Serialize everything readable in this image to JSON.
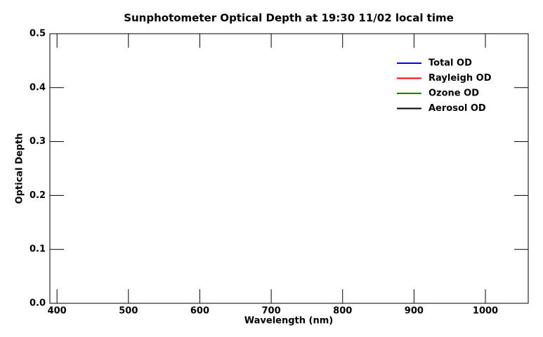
{
  "chart_data": {
    "type": "line",
    "title": "Sunphotometer Optical Depth at 19:30  11/02 local time",
    "xlabel": "Wavelength (nm)",
    "ylabel": "Optical Depth",
    "x": [],
    "series": [
      {
        "name": "Total OD",
        "color": "#0000ff",
        "values": []
      },
      {
        "name": "Rayleigh OD",
        "color": "#ff0000",
        "values": []
      },
      {
        "name": "Ozone OD",
        "color": "#008000",
        "values": []
      },
      {
        "name": "Aerosol OD",
        "color": "#000000",
        "values": []
      }
    ],
    "xlim": [
      390,
      1060
    ],
    "xticks": [
      400,
      500,
      600,
      700,
      800,
      900,
      1000
    ],
    "ylim": [
      0,
      0.5
    ],
    "yticks": [
      {
        "value": 0,
        "label": "0.0"
      },
      0.1,
      0.2,
      0.3,
      0.4,
      0.5
    ],
    "legend": "upper right"
  }
}
